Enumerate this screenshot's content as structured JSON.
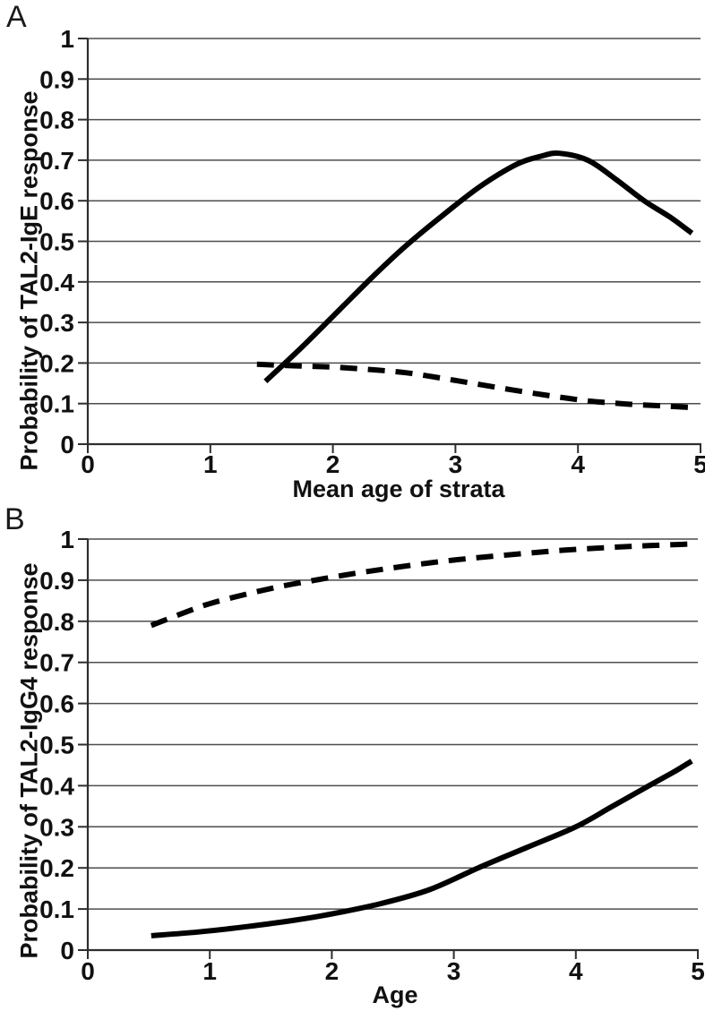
{
  "colors": {
    "curve": "#000000",
    "grid": "#4d4d4d",
    "axis": "#2e2e2e",
    "text": "#111111",
    "background": "#ffffff"
  },
  "chart_data": [
    {
      "type": "line",
      "panel_label": "A",
      "title": "",
      "xlabel": "Mean age of strata",
      "ylabel": "Probability of TAL2-IgE response",
      "xlim": [
        0,
        5
      ],
      "ylim": [
        0,
        1
      ],
      "x_ticks": [
        "0",
        "1",
        "2",
        "3",
        "4",
        "5"
      ],
      "y_ticks": [
        "0",
        "0.1",
        "0.2",
        "0.3",
        "0.4",
        "0.5",
        "0.6",
        "0.7",
        "0.8",
        "0.9",
        "1"
      ],
      "grid": "horizontal-only",
      "legend": "none",
      "series": [
        {
          "name": "solid-curve",
          "line_style": "solid",
          "points": [
            [
              1.45,
              0.155
            ],
            [
              1.75,
              0.24
            ],
            [
              2.05,
              0.33
            ],
            [
              2.35,
              0.42
            ],
            [
              2.6,
              0.49
            ],
            [
              2.9,
              0.565
            ],
            [
              3.2,
              0.635
            ],
            [
              3.5,
              0.69
            ],
            [
              3.7,
              0.71
            ],
            [
              3.85,
              0.717
            ],
            [
              4.08,
              0.7
            ],
            [
              4.3,
              0.655
            ],
            [
              4.54,
              0.6
            ],
            [
              4.75,
              0.56
            ],
            [
              4.93,
              0.52
            ]
          ]
        },
        {
          "name": "dashed-curve",
          "line_style": "dashed",
          "points": [
            [
              1.38,
              0.197
            ],
            [
              1.7,
              0.193
            ],
            [
              2.0,
              0.19
            ],
            [
              2.3,
              0.184
            ],
            [
              2.6,
              0.176
            ],
            [
              2.9,
              0.162
            ],
            [
              3.2,
              0.147
            ],
            [
              3.5,
              0.132
            ],
            [
              3.8,
              0.118
            ],
            [
              4.1,
              0.106
            ],
            [
              4.4,
              0.099
            ],
            [
              4.7,
              0.094
            ],
            [
              4.95,
              0.09
            ]
          ]
        }
      ]
    },
    {
      "type": "line",
      "panel_label": "B",
      "title": "",
      "xlabel": "Age",
      "ylabel": "Probability of TAL2-IgG4 response",
      "xlim": [
        0,
        5
      ],
      "ylim": [
        0,
        1
      ],
      "x_ticks": [
        "0",
        "1",
        "2",
        "3",
        "4",
        "5"
      ],
      "y_ticks": [
        "0",
        "0.1",
        "0.2",
        "0.3",
        "0.4",
        "0.5",
        "0.6",
        "0.7",
        "0.8",
        "0.9",
        "1"
      ],
      "grid": "horizontal-only",
      "legend": "none",
      "series": [
        {
          "name": "dashed-curve",
          "line_style": "dashed",
          "points": [
            [
              0.52,
              0.79
            ],
            [
              0.8,
              0.822
            ],
            [
              1.0,
              0.843
            ],
            [
              1.3,
              0.866
            ],
            [
              1.6,
              0.886
            ],
            [
              1.9,
              0.902
            ],
            [
              2.2,
              0.917
            ],
            [
              2.5,
              0.93
            ],
            [
              2.8,
              0.942
            ],
            [
              3.1,
              0.952
            ],
            [
              3.5,
              0.963
            ],
            [
              3.9,
              0.973
            ],
            [
              4.3,
              0.98
            ],
            [
              4.6,
              0.984
            ],
            [
              4.95,
              0.988
            ]
          ]
        },
        {
          "name": "solid-curve",
          "line_style": "solid",
          "points": [
            [
              0.52,
              0.035
            ],
            [
              0.9,
              0.044
            ],
            [
              1.3,
              0.057
            ],
            [
              1.7,
              0.073
            ],
            [
              2.0,
              0.088
            ],
            [
              2.4,
              0.113
            ],
            [
              2.8,
              0.147
            ],
            [
              3.2,
              0.2
            ],
            [
              3.6,
              0.25
            ],
            [
              4.0,
              0.3
            ],
            [
              4.3,
              0.35
            ],
            [
              4.6,
              0.4
            ],
            [
              4.8,
              0.433
            ],
            [
              4.95,
              0.46
            ]
          ]
        }
      ]
    }
  ]
}
